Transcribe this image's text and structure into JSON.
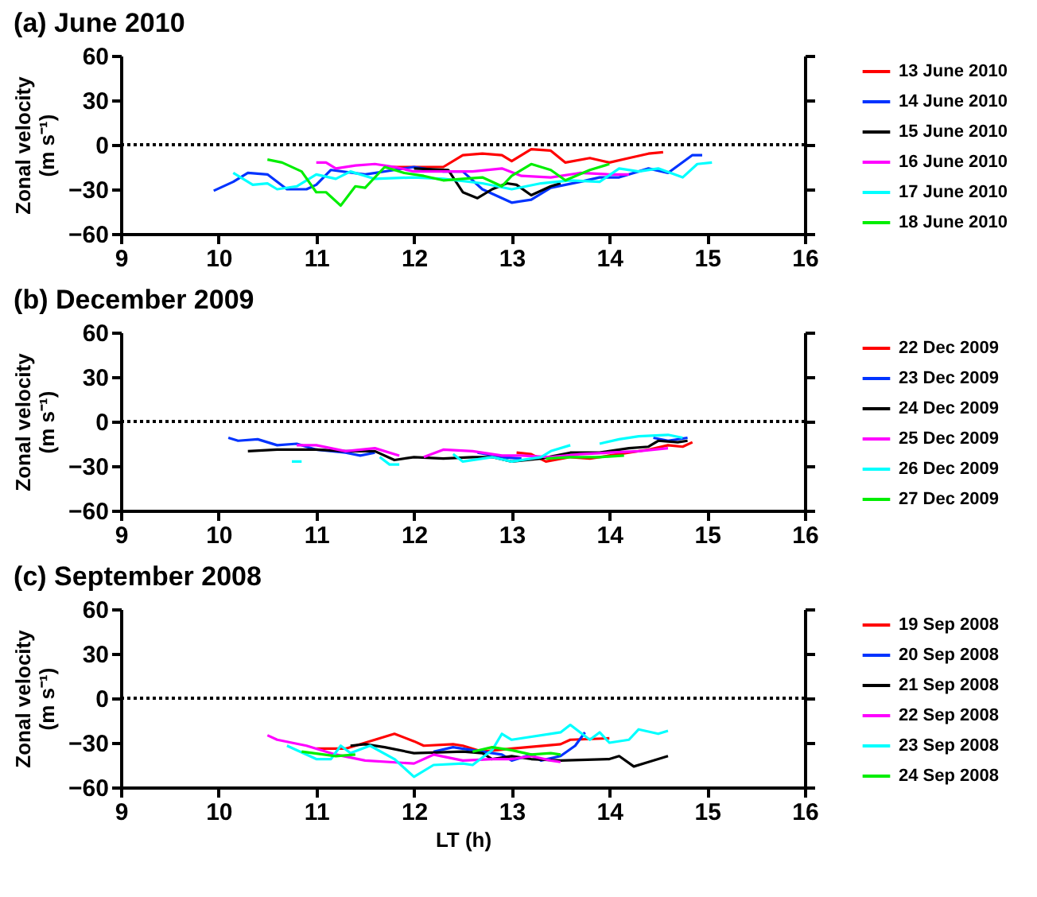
{
  "chart_data": [
    {
      "type": "line",
      "title": "(a) June 2010",
      "ylabel": "Zonal velocity (m s⁻¹)",
      "xlim": [
        9,
        16
      ],
      "xticks": [
        9,
        10,
        11,
        12,
        13,
        14,
        15,
        16
      ],
      "ylim": [
        -60,
        60
      ],
      "yticks": [
        -60,
        -30,
        0,
        30,
        60
      ],
      "grid": false,
      "legend": "right",
      "marker": "none",
      "line_style": "solid",
      "ref_lines": [
        {
          "axis": "y",
          "value": 0,
          "color": "#000000",
          "line_style": "dotted"
        }
      ],
      "series": [
        {
          "name": "13 June 2010",
          "color": "#ff0000",
          "x": [
            11.77,
            12.3,
            12.5,
            12.7,
            12.9,
            13.0,
            13.2,
            13.4,
            13.55,
            13.8,
            14.0,
            14.2,
            14.4,
            14.55
          ],
          "values": [
            -15,
            -15,
            -7,
            -6,
            -7,
            -11,
            -3,
            -4,
            -12,
            -9,
            -12,
            -9,
            -6,
            -5
          ]
        },
        {
          "name": "14 June 2010",
          "color": "#0033ff",
          "x": [
            9.95,
            10.15,
            10.3,
            10.5,
            10.7,
            10.9,
            11.0,
            11.15,
            11.5,
            11.8,
            12.0,
            12.3,
            12.5,
            12.7,
            13.0,
            13.2,
            13.4,
            13.7,
            13.9,
            14.1,
            14.4,
            14.6,
            14.85,
            14.95
          ],
          "values": [
            -31,
            -25,
            -19,
            -20,
            -30,
            -30,
            -27,
            -17,
            -20,
            -17,
            -15,
            -18,
            -18,
            -30,
            -39,
            -37,
            -29,
            -25,
            -22,
            -22,
            -16,
            -19,
            -7,
            -7
          ]
        },
        {
          "name": "15 June 2010",
          "color": "#000000",
          "x": [
            12.0,
            12.35,
            12.5,
            12.65,
            12.8,
            12.95,
            13.05,
            13.2,
            13.4,
            13.5
          ],
          "values": [
            -16,
            -17,
            -32,
            -36,
            -30,
            -26,
            -27,
            -34,
            -28,
            -26
          ]
        },
        {
          "name": "16 June 2010",
          "color": "#ff00ff",
          "x": [
            11.0,
            11.1,
            11.2,
            11.4,
            11.6,
            11.8,
            12.0,
            12.3,
            12.6,
            12.9,
            13.1,
            13.4,
            13.7,
            14.0,
            14.2
          ],
          "values": [
            -12,
            -12,
            -16,
            -14,
            -13,
            -15,
            -18,
            -18,
            -18,
            -16,
            -21,
            -22,
            -19,
            -20,
            -20
          ]
        },
        {
          "name": "17 June 2010",
          "color": "#00ffff",
          "x": [
            10.15,
            10.35,
            10.5,
            10.6,
            10.8,
            11.0,
            11.2,
            11.35,
            11.6,
            12.0,
            12.3,
            12.7,
            13.0,
            13.3,
            13.6,
            13.9,
            14.1,
            14.3,
            14.5,
            14.75,
            14.9,
            15.05
          ],
          "values": [
            -19,
            -27,
            -26,
            -30,
            -28,
            -20,
            -23,
            -18,
            -23,
            -22,
            -23,
            -26,
            -30,
            -26,
            -24,
            -25,
            -16,
            -18,
            -16,
            -22,
            -13,
            -12
          ]
        },
        {
          "name": "18 June 2010",
          "color": "#00ee00",
          "x": [
            10.5,
            10.65,
            10.85,
            11.0,
            11.1,
            11.25,
            11.4,
            11.5,
            11.7,
            11.9,
            12.1,
            12.3,
            12.5,
            12.7,
            12.9,
            13.0,
            13.2,
            13.4,
            13.55,
            13.8,
            14.0
          ],
          "values": [
            -10,
            -12,
            -18,
            -32,
            -32,
            -41,
            -28,
            -29,
            -15,
            -19,
            -21,
            -24,
            -23,
            -22,
            -28,
            -21,
            -13,
            -17,
            -24,
            -17,
            -13
          ]
        }
      ]
    },
    {
      "type": "line",
      "title": "(b) December 2009",
      "ylabel": "Zonal velocity (m s⁻¹)",
      "xlim": [
        9,
        16
      ],
      "xticks": [
        9,
        10,
        11,
        12,
        13,
        14,
        15,
        16
      ],
      "ylim": [
        -60,
        60
      ],
      "yticks": [
        -60,
        -30,
        0,
        30,
        60
      ],
      "grid": false,
      "legend": "right",
      "marker": "none",
      "line_style": "solid",
      "ref_lines": [
        {
          "axis": "y",
          "value": 0,
          "color": "#000000",
          "line_style": "dotted"
        }
      ],
      "series": [
        {
          "name": "22 Dec 2009",
          "color": "#ff0000",
          "x": [
            13.05,
            13.2,
            13.35,
            13.6,
            13.8,
            14.0,
            14.2,
            14.4,
            14.6,
            14.75,
            14.85
          ],
          "values": [
            -21,
            -22,
            -27,
            -24,
            -25,
            -23,
            -21,
            -19,
            -16,
            -17,
            -14
          ]
        },
        {
          "name": "23 Dec 2009",
          "color": "#0033ff",
          "x": [
            10.1,
            10.2,
            10.4,
            10.6,
            10.8,
            11.0,
            11.3,
            11.45,
            11.6,
            11.63,
            12.65,
            12.9,
            13.1,
            13.2,
            14.45,
            14.6,
            14.8
          ],
          "values": [
            -11,
            -13,
            -12,
            -16,
            -15,
            -19,
            -21,
            -23,
            -21,
            null,
            -21,
            -24,
            -25,
            null,
            -11,
            -13,
            -11
          ]
        },
        {
          "name": "24 Dec 2009",
          "color": "#000000",
          "x": [
            10.3,
            10.6,
            11.0,
            11.3,
            11.6,
            11.8,
            12.0,
            12.3,
            12.6,
            12.8,
            13.0,
            13.3,
            13.6,
            13.9,
            14.2,
            14.4,
            14.5,
            14.7,
            14.8
          ],
          "values": [
            -20,
            -19,
            -19,
            -20,
            -20,
            -26,
            -24,
            -25,
            -24,
            -24,
            -27,
            -25,
            -21,
            -21,
            -18,
            -17,
            -13,
            -14,
            -13
          ]
        },
        {
          "name": "25 Dec 2009",
          "color": "#ff00ff",
          "x": [
            10.8,
            11.0,
            11.3,
            11.6,
            11.85,
            11.95,
            12.1,
            12.3,
            12.6,
            12.9,
            13.1,
            13.4,
            13.7,
            14.0,
            14.3,
            14.6
          ],
          "values": [
            -16,
            -16,
            -20,
            -18,
            -23,
            null,
            -24,
            -19,
            -20,
            -23,
            -23,
            -24,
            -22,
            -21,
            -20,
            -18
          ]
        },
        {
          "name": "26 Dec 2009",
          "color": "#00ffff",
          "x": [
            10.75,
            10.85,
            11.0,
            11.65,
            11.75,
            11.85,
            12.0,
            12.4,
            12.5,
            12.8,
            13.0,
            13.3,
            13.4,
            13.6,
            13.75,
            13.9,
            14.1,
            14.3,
            14.6,
            14.75
          ],
          "values": [
            -27,
            -27,
            null,
            -24,
            -29,
            -29,
            null,
            -22,
            -27,
            -24,
            -27,
            -24,
            -20,
            -16,
            null,
            -15,
            -12,
            -10,
            -9,
            -11
          ]
        },
        {
          "name": "27 Dec 2009",
          "color": "#00ee00",
          "x": [
            13.35,
            13.6,
            13.9,
            14.15
          ],
          "values": [
            -25,
            -24,
            -24,
            -23
          ]
        }
      ]
    },
    {
      "type": "line",
      "title": "(c) September 2008",
      "xlabel": "LT (h)",
      "ylabel": "Zonal velocity (m s⁻¹)",
      "xlim": [
        9,
        16
      ],
      "xticks": [
        9,
        10,
        11,
        12,
        13,
        14,
        15,
        16
      ],
      "ylim": [
        -60,
        60
      ],
      "yticks": [
        -60,
        -30,
        0,
        30,
        60
      ],
      "grid": false,
      "legend": "right",
      "marker": "none",
      "line_style": "solid",
      "ref_lines": [
        {
          "axis": "y",
          "value": 0,
          "color": "#000000",
          "line_style": "dotted"
        }
      ],
      "series": [
        {
          "name": "19 Sep 2008",
          "color": "#ff0000",
          "x": [
            11.0,
            11.3,
            11.5,
            11.8,
            12.0,
            12.1,
            12.4,
            12.5,
            12.7,
            13.0,
            13.5,
            13.6,
            14.0
          ],
          "values": [
            -34,
            -34,
            -30,
            -24,
            -29,
            -32,
            -31,
            -32,
            -36,
            -34,
            -31,
            -28,
            -27
          ]
        },
        {
          "name": "20 Sep 2008",
          "color": "#0033ff",
          "x": [
            12.2,
            12.4,
            12.6,
            12.9,
            13.0,
            13.2,
            13.3,
            13.5,
            13.65,
            13.75
          ],
          "values": [
            -36,
            -33,
            -35,
            -38,
            -42,
            -38,
            -42,
            -39,
            -32,
            -23
          ]
        },
        {
          "name": "21 Sep 2008",
          "color": "#000000",
          "x": [
            11.35,
            11.5,
            11.7,
            12.0,
            12.5,
            12.7,
            12.8,
            13.0,
            13.2,
            13.5,
            14.0,
            14.1,
            14.25,
            14.4,
            14.6
          ],
          "values": [
            -32,
            -31,
            -33,
            -37,
            -36,
            -37,
            -41,
            -39,
            -41,
            -42,
            -41,
            -39,
            -46,
            -43,
            -39
          ]
        },
        {
          "name": "22 Sep 2008",
          "color": "#ff00ff",
          "x": [
            10.5,
            10.6,
            10.9,
            11.2,
            11.5,
            12.0,
            12.2,
            12.5,
            12.8,
            13.0,
            13.2,
            13.4,
            13.5
          ],
          "values": [
            -25,
            -28,
            -32,
            -38,
            -42,
            -44,
            -38,
            -42,
            -41,
            -41,
            -39,
            -42,
            -43
          ]
        },
        {
          "name": "23 Sep 2008",
          "color": "#00ffff",
          "x": [
            10.7,
            11.0,
            11.15,
            11.25,
            11.35,
            11.55,
            11.8,
            12.0,
            12.2,
            12.5,
            12.6,
            12.8,
            12.9,
            13.0,
            13.5,
            13.6,
            13.8,
            13.9,
            14.0,
            14.2,
            14.3,
            14.5,
            14.6
          ],
          "values": [
            -32,
            -41,
            -41,
            -32,
            -37,
            -32,
            -41,
            -53,
            -45,
            -44,
            -45,
            -35,
            -24,
            -28,
            -23,
            -18,
            -28,
            -23,
            -30,
            -28,
            -21,
            -24,
            -22
          ]
        },
        {
          "name": "24 Sep 2008",
          "color": "#00ee00",
          "x": [
            10.85,
            11.2,
            11.4,
            11.6,
            12.6,
            12.8,
            13.0,
            13.2,
            13.4,
            13.5
          ],
          "values": [
            -36,
            -39,
            -38,
            null,
            -36,
            -33,
            -35,
            -38,
            -37,
            -38
          ]
        }
      ]
    }
  ]
}
